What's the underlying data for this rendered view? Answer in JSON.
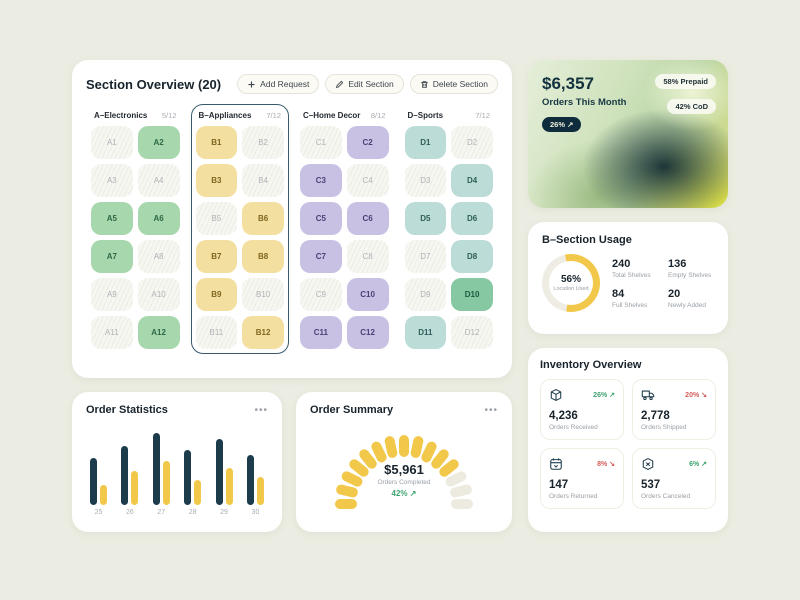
{
  "ui": {
    "menu_dots": "•••"
  },
  "colors": {
    "background": "#ECEDE2",
    "bar_dark": "#1C3B4B",
    "bar_yellow": "#F2C84B",
    "donut_track": "#EFEDE3",
    "accent_green": "#3FA370",
    "accent_red": "#D45B5B"
  },
  "section_overview": {
    "title": "Section Overview (20)",
    "actions": [
      {
        "label": "Add Request",
        "icon": "plus-icon"
      },
      {
        "label": "Edit Section",
        "icon": "edit-icon"
      },
      {
        "label": "Delete Section",
        "icon": "trash-icon"
      }
    ],
    "columns": [
      {
        "name": "A–Electronics",
        "count": "5/12",
        "selected": false,
        "style": "green",
        "cells": [
          {
            "id": "A1",
            "filled": false
          },
          {
            "id": "A2",
            "filled": true
          },
          {
            "id": "A3",
            "filled": false
          },
          {
            "id": "A4",
            "filled": false
          },
          {
            "id": "A5",
            "filled": true
          },
          {
            "id": "A6",
            "filled": true
          },
          {
            "id": "A7",
            "filled": true
          },
          {
            "id": "A8",
            "filled": false
          },
          {
            "id": "A9",
            "filled": false
          },
          {
            "id": "A10",
            "filled": false
          },
          {
            "id": "A11",
            "filled": false
          },
          {
            "id": "A12",
            "filled": true
          }
        ]
      },
      {
        "name": "B–Appliances",
        "count": "7/12",
        "selected": true,
        "style": "yellow",
        "cells": [
          {
            "id": "B1",
            "filled": true
          },
          {
            "id": "B2",
            "filled": false
          },
          {
            "id": "B3",
            "filled": true
          },
          {
            "id": "B4",
            "filled": false
          },
          {
            "id": "B5",
            "filled": false
          },
          {
            "id": "B6",
            "filled": true
          },
          {
            "id": "B7",
            "filled": true
          },
          {
            "id": "B8",
            "filled": true
          },
          {
            "id": "B9",
            "filled": true
          },
          {
            "id": "B10",
            "filled": false
          },
          {
            "id": "B11",
            "filled": false
          },
          {
            "id": "B12",
            "filled": true
          }
        ]
      },
      {
        "name": "C–Home Decor",
        "count": "8/12",
        "selected": false,
        "style": "purple",
        "cells": [
          {
            "id": "C1",
            "filled": false
          },
          {
            "id": "C2",
            "filled": true
          },
          {
            "id": "C3",
            "filled": true
          },
          {
            "id": "C4",
            "filled": false
          },
          {
            "id": "C5",
            "filled": true
          },
          {
            "id": "C6",
            "filled": true
          },
          {
            "id": "C7",
            "filled": true
          },
          {
            "id": "C8",
            "filled": false
          },
          {
            "id": "C9",
            "filled": false
          },
          {
            "id": "C10",
            "filled": true
          },
          {
            "id": "C11",
            "filled": true
          },
          {
            "id": "C12",
            "filled": true
          }
        ]
      },
      {
        "name": "D–Sports",
        "count": "7/12",
        "selected": false,
        "style": "teal",
        "cells": [
          {
            "id": "D1",
            "filled": true
          },
          {
            "id": "D2",
            "filled": false
          },
          {
            "id": "D3",
            "filled": false
          },
          {
            "id": "D4",
            "filled": true
          },
          {
            "id": "D5",
            "filled": true
          },
          {
            "id": "D6",
            "filled": true
          },
          {
            "id": "D7",
            "filled": false
          },
          {
            "id": "D8",
            "filled": true
          },
          {
            "id": "D9",
            "filled": false
          },
          {
            "id": "D10",
            "filled": true,
            "variant": "dark"
          },
          {
            "id": "D11",
            "filled": true
          },
          {
            "id": "D12",
            "filled": false
          }
        ]
      }
    ]
  },
  "hero": {
    "amount": "$6,357",
    "label": "Orders This Month",
    "change": "26% ↗",
    "pills": [
      "58% Prepaid",
      "42% CoD"
    ]
  },
  "usage": {
    "title": "B–Section Usage",
    "donut_pct": 56,
    "donut_label": "56%",
    "donut_sub": "Location Used",
    "stats": [
      {
        "value": "240",
        "label": "Total Shelves"
      },
      {
        "value": "136",
        "label": "Empty Shelves"
      },
      {
        "value": "84",
        "label": "Full Shelves"
      },
      {
        "value": "20",
        "label": "Newly Added"
      }
    ]
  },
  "inventory": {
    "title": "Inventory Overview",
    "tiles": [
      {
        "icon": "box-icon",
        "pct": "26%",
        "arrow": "↗",
        "dir": "up",
        "value": "4,236",
        "label": "Orders Received"
      },
      {
        "icon": "truck-icon",
        "pct": "20%",
        "arrow": "↘",
        "dir": "down",
        "value": "2,778",
        "label": "Orders Shipped"
      },
      {
        "icon": "calendar-return-icon",
        "pct": "8%",
        "arrow": "↘",
        "dir": "down",
        "value": "147",
        "label": "Orders Returned"
      },
      {
        "icon": "cancel-box-icon",
        "pct": "6%",
        "arrow": "↗",
        "dir": "up",
        "value": "537",
        "label": "Orders Canceled"
      }
    ]
  },
  "chart_data": [
    {
      "type": "bar",
      "title": "Order Statistics",
      "categories": [
        "25",
        "26",
        "27",
        "28",
        "29",
        "30"
      ],
      "series": [
        {
          "name": "completed",
          "color": "#1C3B4B",
          "values": [
            60,
            76,
            92,
            70,
            84,
            64
          ]
        },
        {
          "name": "pending",
          "color": "#F2C84B",
          "values": [
            26,
            44,
            56,
            32,
            48,
            36
          ]
        }
      ],
      "ylim": [
        0,
        100
      ],
      "legend": "none",
      "grid": false
    },
    {
      "type": "gauge",
      "title": "Order Summary",
      "segments_total": 15,
      "segments_filled": 12,
      "center_value": "$5,961",
      "center_label": "Orders Completed",
      "change": "42% ↗"
    }
  ]
}
